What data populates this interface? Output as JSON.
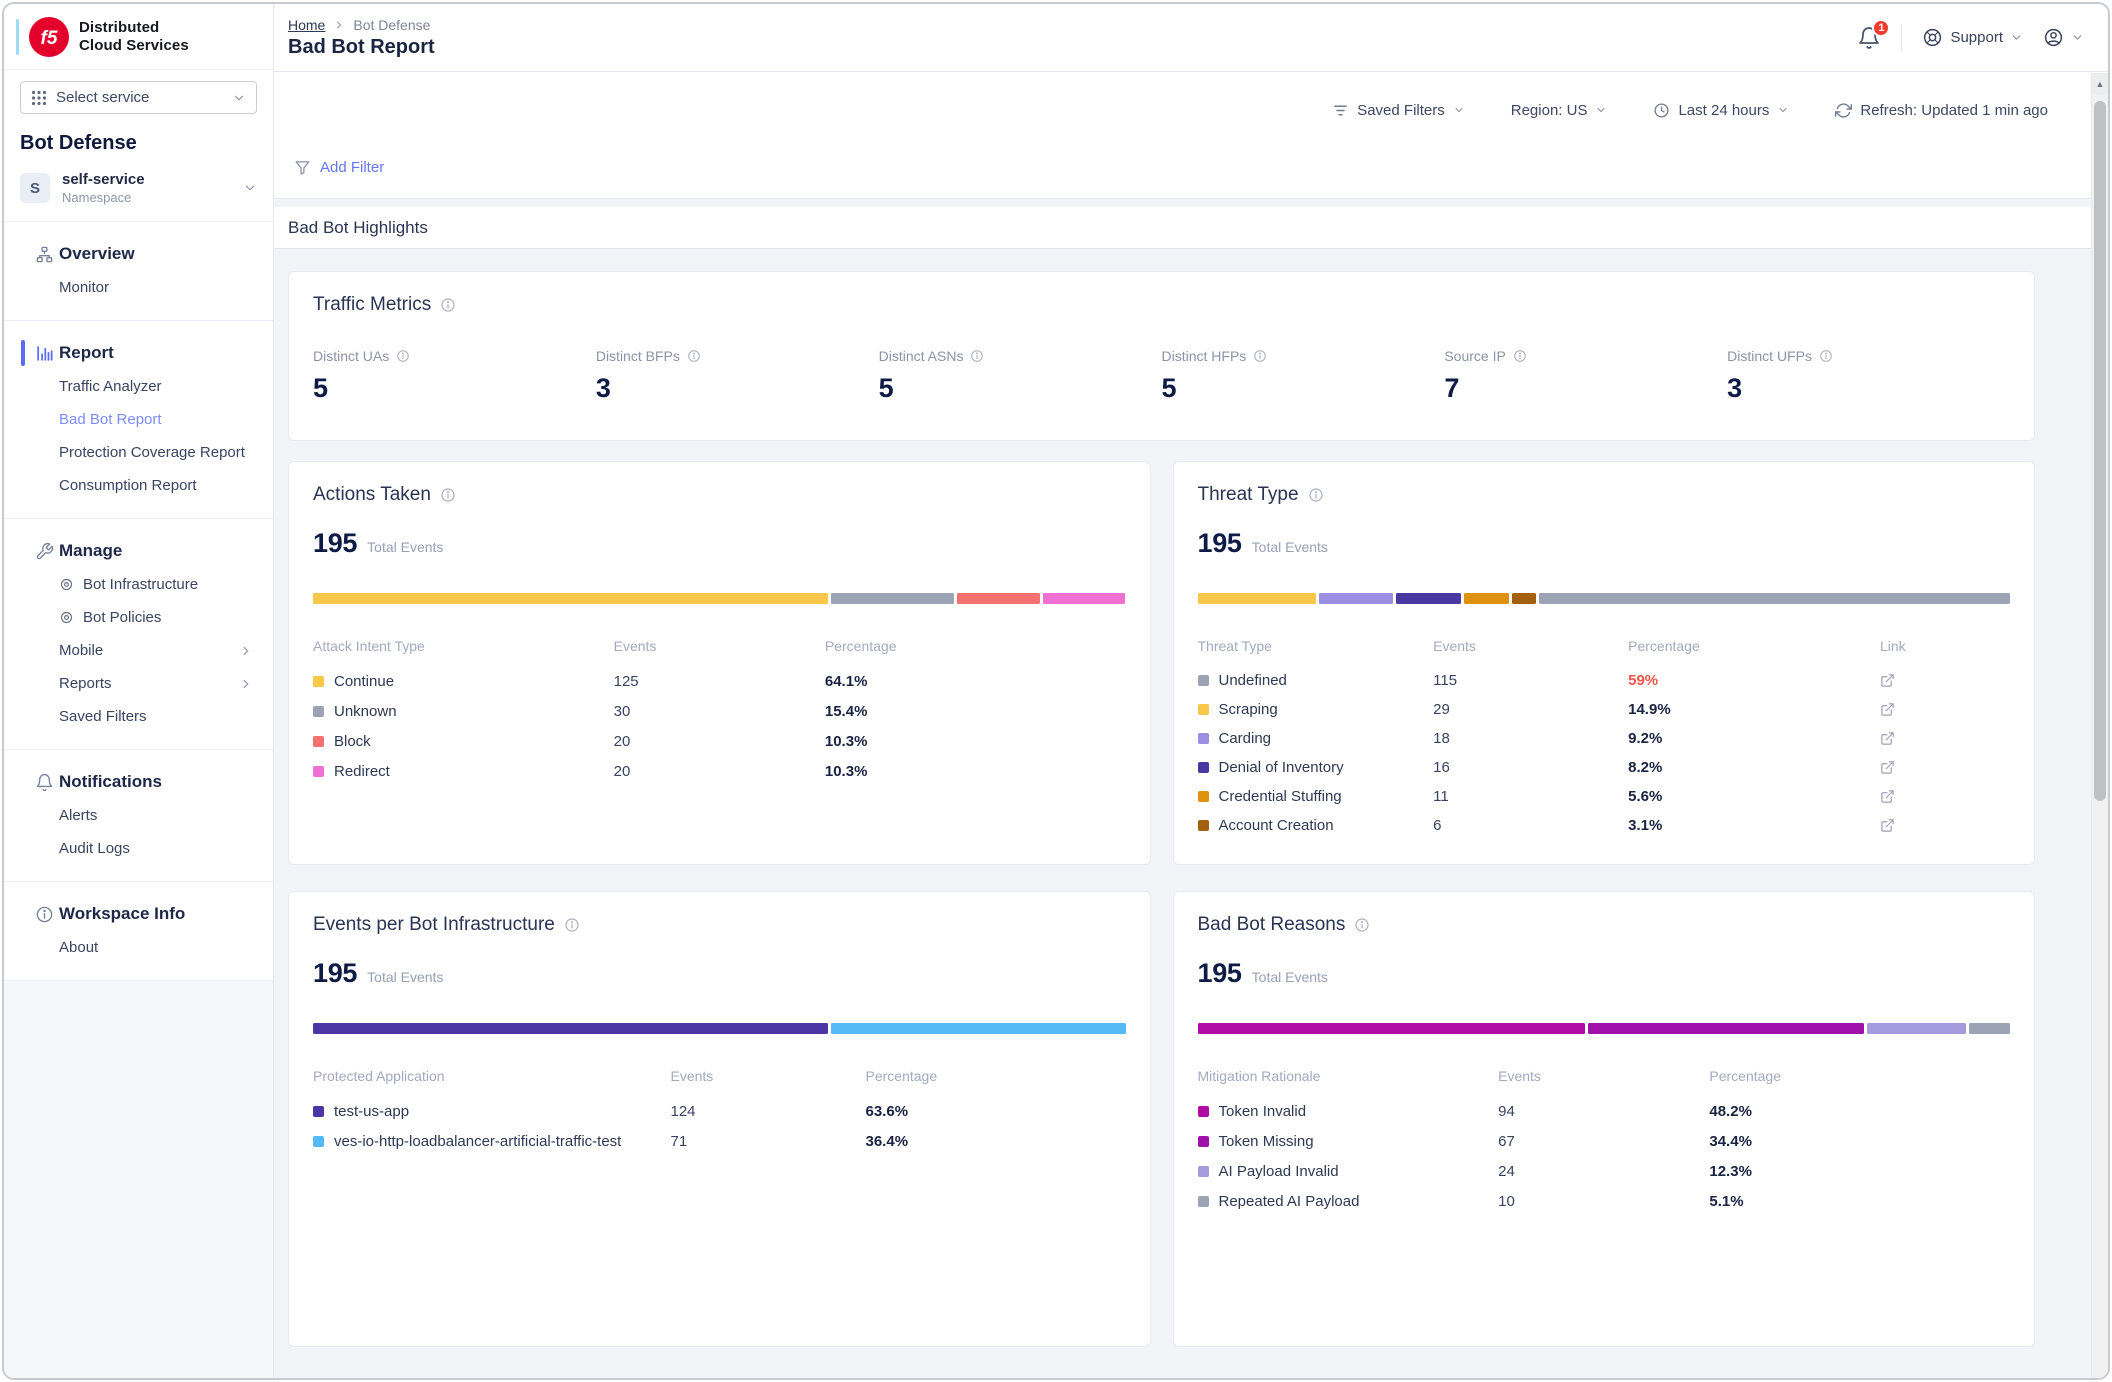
{
  "brand": {
    "line1": "Distributed",
    "line2": "Cloud Services"
  },
  "sidebar": {
    "service_selector": "Select service",
    "workspace_title": "Bot Defense",
    "namespace": {
      "initial": "S",
      "name": "self-service",
      "type": "Namespace"
    },
    "sections": [
      {
        "icon": "overview",
        "label": "Overview",
        "items": [
          {
            "label": "Monitor"
          }
        ]
      },
      {
        "icon": "report",
        "label": "Report",
        "active": true,
        "items": [
          {
            "label": "Traffic Analyzer"
          },
          {
            "label": "Bad Bot Report",
            "active": true
          },
          {
            "label": "Protection Coverage Report"
          },
          {
            "label": "Consumption Report"
          }
        ]
      },
      {
        "icon": "wrench",
        "label": "Manage",
        "items": [
          {
            "label": "Bot Infrastructure",
            "icon": "target"
          },
          {
            "label": "Bot Policies",
            "icon": "target"
          },
          {
            "label": "Mobile",
            "chevron": true
          },
          {
            "label": "Reports",
            "chevron": true
          },
          {
            "label": "Saved Filters"
          }
        ]
      },
      {
        "icon": "bell",
        "label": "Notifications",
        "items": [
          {
            "label": "Alerts"
          },
          {
            "label": "Audit Logs"
          }
        ]
      },
      {
        "icon": "info",
        "label": "Workspace Info",
        "items": [
          {
            "label": "About"
          }
        ]
      }
    ]
  },
  "header": {
    "breadcrumb_home": "Home",
    "breadcrumb_current": "Bot Defense",
    "title": "Bad Bot Report",
    "notification_count": "1",
    "support_label": "Support"
  },
  "filters": {
    "saved_filters": "Saved Filters",
    "region": "Region: US",
    "time_range": "Last 24 hours",
    "refresh": "Refresh: Updated 1 min ago",
    "add_filter": "Add Filter"
  },
  "section_title": "Bad Bot Highlights",
  "traffic_metrics": {
    "title": "Traffic Metrics",
    "metrics": [
      {
        "label": "Distinct UAs",
        "value": "5"
      },
      {
        "label": "Distinct BFPs",
        "value": "3"
      },
      {
        "label": "Distinct ASNs",
        "value": "5"
      },
      {
        "label": "Distinct HFPs",
        "value": "5"
      },
      {
        "label": "Source IP",
        "value": "7"
      },
      {
        "label": "Distinct UFPs",
        "value": "3"
      }
    ]
  },
  "chart_data": [
    {
      "id": "actions_taken",
      "type": "bar",
      "variant": "stacked-horizontal",
      "title": "Actions Taken",
      "total_events": 195,
      "total": "195",
      "total_label": "Total Events",
      "columns": [
        "Attack Intent Type",
        "Events",
        "Percentage"
      ],
      "rows": [
        {
          "label": "Continue",
          "events": 125,
          "pct": "64.1%",
          "color": "#F9C84B"
        },
        {
          "label": "Unknown",
          "events": 30,
          "pct": "15.4%",
          "color": "#9CA3B5"
        },
        {
          "label": "Block",
          "events": 20,
          "pct": "10.3%",
          "color": "#F3716F"
        },
        {
          "label": "Redirect",
          "events": 20,
          "pct": "10.3%",
          "color": "#EF6FD3"
        }
      ],
      "bar_order": [
        0,
        1,
        2,
        3
      ]
    },
    {
      "id": "threat_type",
      "type": "bar",
      "variant": "stacked-horizontal",
      "title": "Threat Type",
      "total_events": 195,
      "total": "195",
      "total_label": "Total Events",
      "columns": [
        "Threat Type",
        "Events",
        "Percentage",
        "Link"
      ],
      "rows": [
        {
          "label": "Undefined",
          "events": 115,
          "pct": "59%",
          "color": "#9CA3B5",
          "pct_color": "#F2544A",
          "link": true
        },
        {
          "label": "Scraping",
          "events": 29,
          "pct": "14.9%",
          "color": "#F9C84B",
          "link": true
        },
        {
          "label": "Carding",
          "events": 18,
          "pct": "9.2%",
          "color": "#9C8EE2",
          "link": true
        },
        {
          "label": "Denial of Inventory",
          "events": 16,
          "pct": "8.2%",
          "color": "#4A38A2",
          "link": true
        },
        {
          "label": "Credential Stuffing",
          "events": 11,
          "pct": "5.6%",
          "color": "#DE920D",
          "link": true
        },
        {
          "label": "Account Creation",
          "events": 6,
          "pct": "3.1%",
          "color": "#A4610D",
          "link": true
        }
      ],
      "bar_order": [
        1,
        2,
        3,
        4,
        5,
        0
      ]
    },
    {
      "id": "events_per_bot_infrastructure",
      "type": "bar",
      "variant": "stacked-horizontal",
      "title": "Events per Bot Infrastructure",
      "total_events": 195,
      "total": "195",
      "total_label": "Total Events",
      "columns": [
        "Protected Application",
        "Events",
        "Percentage"
      ],
      "rows": [
        {
          "label": "test-us-app",
          "events": 124,
          "pct": "63.6%",
          "color": "#4C35A4"
        },
        {
          "label": "ves-io-http-loadbalancer-artificial-traffic-test",
          "events": 71,
          "pct": "36.4%",
          "color": "#54B9F5"
        }
      ],
      "bar_order": [
        0,
        1
      ]
    },
    {
      "id": "bad_bot_reasons",
      "type": "bar",
      "variant": "stacked-horizontal",
      "title": "Bad Bot Reasons",
      "total_events": 195,
      "total": "195",
      "total_label": "Total Events",
      "columns": [
        "Mitigation Rationale",
        "Events",
        "Percentage"
      ],
      "rows": [
        {
          "label": "Token Invalid",
          "events": 94,
          "pct": "48.2%",
          "color": "#B00CA4"
        },
        {
          "label": "Token Missing",
          "events": 67,
          "pct": "34.4%",
          "color": "#A011AC"
        },
        {
          "label": "AI Payload Invalid",
          "events": 24,
          "pct": "12.3%",
          "color": "#A39BDD"
        },
        {
          "label": "Repeated AI Payload",
          "events": 10,
          "pct": "5.1%",
          "color": "#9CA3B5"
        }
      ],
      "bar_order": [
        0,
        1,
        2,
        3
      ]
    }
  ]
}
